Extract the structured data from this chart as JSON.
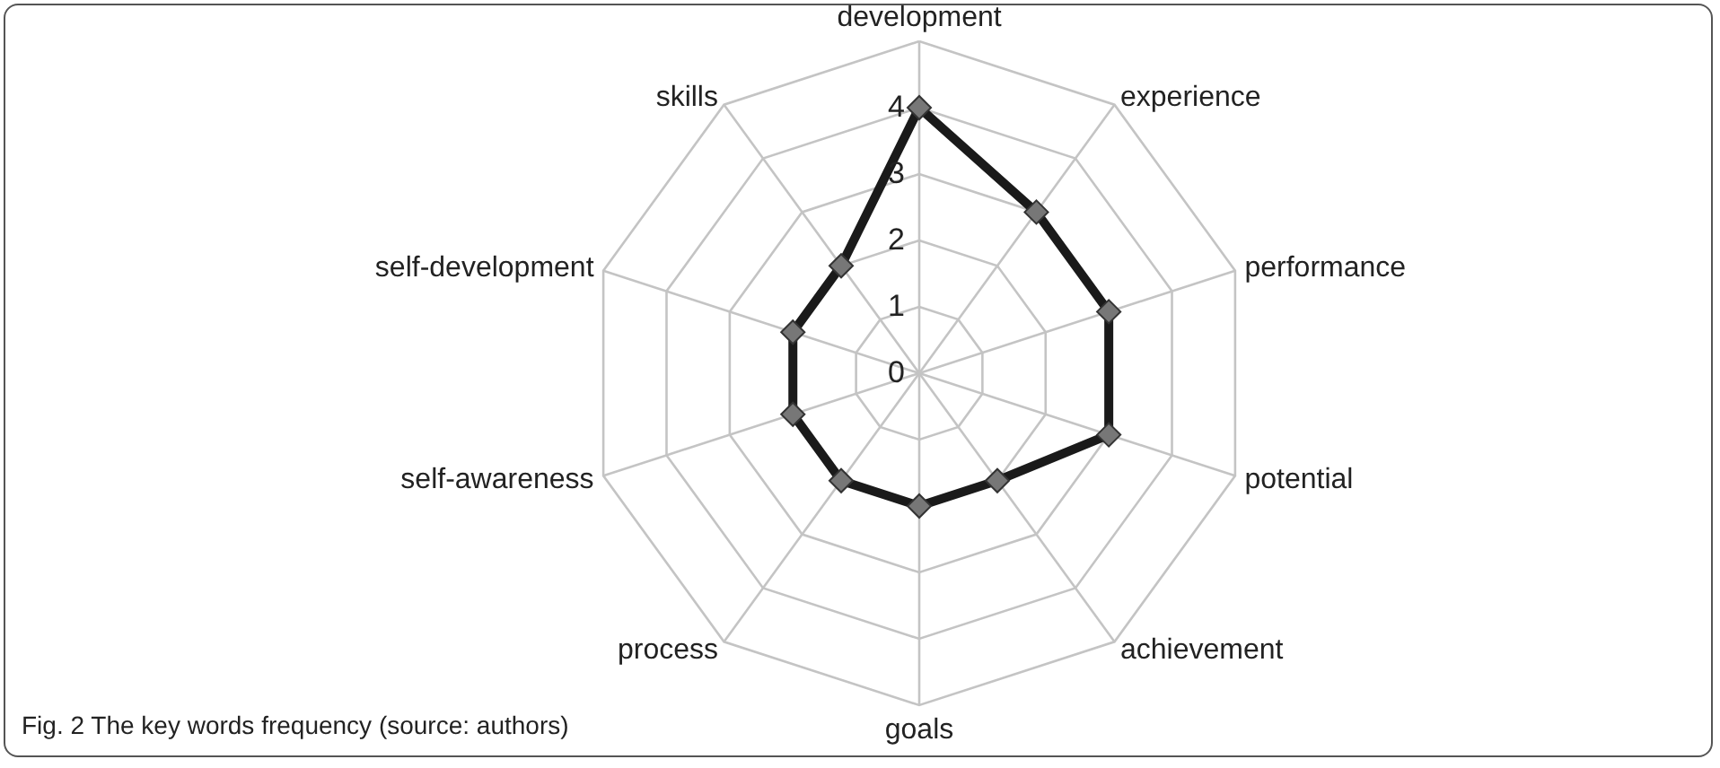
{
  "chart_data": {
    "type": "radar",
    "categories": [
      "development",
      "experience",
      "performance",
      "potential",
      "achievement",
      "goals",
      "process",
      "self-awareness",
      "self-development",
      "skills"
    ],
    "series": [
      {
        "color": "#1a1a1a",
        "values": [
          4,
          3,
          3,
          3,
          2,
          2,
          2,
          2,
          2,
          2
        ]
      }
    ],
    "ylim": [
      0,
      5
    ],
    "yticks": [
      0,
      1,
      2,
      3,
      4
    ],
    "grid": true,
    "marker": "diamond",
    "annotations": [
      "Fig. 2 The key words frequency (source: authors)"
    ]
  }
}
